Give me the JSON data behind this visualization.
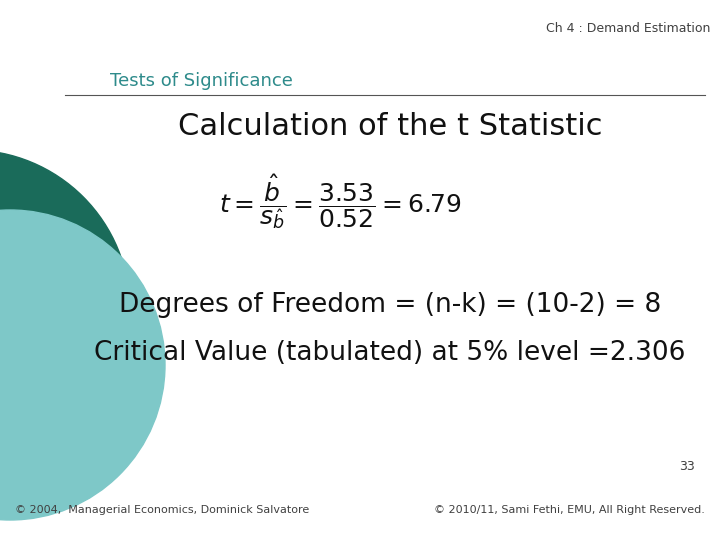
{
  "bg_color": "#ffffff",
  "header_text": "Ch 4 : Demand Estimation",
  "header_color": "#404040",
  "header_fontsize": 9,
  "subtitle_text": "Tests of Significance",
  "subtitle_color": "#2e8b8b",
  "subtitle_fontsize": 13,
  "title_text": "Calculation of the t Statistic",
  "title_fontsize": 22,
  "title_color": "#111111",
  "formula_fontsize": 18,
  "line_color": "#555555",
  "degrees_text": "Degrees of Freedom = (n-k) = (10-2) = 8",
  "degrees_fontsize": 19,
  "degrees_color": "#111111",
  "critical_text": "Critical Value (tabulated) at 5% level =2.306",
  "critical_fontsize": 19,
  "critical_color": "#111111",
  "page_number": "33",
  "footer_left": "© 2004,  Managerial Economics, Dominick Salvatore",
  "footer_right": "© 2010/11, Sami Fethi, EMU, All Right Reserved.",
  "footer_fontsize": 8,
  "footer_color": "#404040",
  "circle_color_dark": "#1a6b5a",
  "circle_color_light": "#7ec8c8"
}
